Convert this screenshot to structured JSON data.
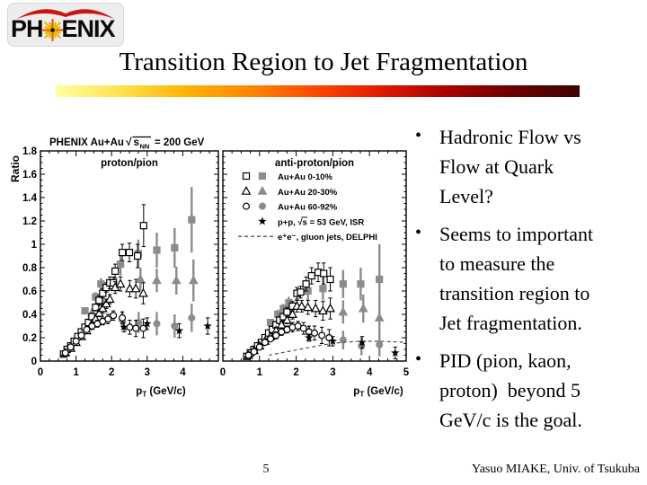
{
  "slide": {
    "logo": {
      "text_left": "PH",
      "text_right": "ENIX"
    },
    "title": "Transition Region to Jet Fragmentation",
    "bullets": {
      "marker": "•",
      "items": [
        "Hadronic Flow vs\nFlow at Quark\nLevel?",
        "Seems to important\nto measure the\ntransition region to\nJet fragmentation.",
        "PID (pion, kaon,\nproton)  beyond 5\nGeV/c is the goal."
      ]
    },
    "footer": {
      "page_number": "5",
      "credit": "Yasuo MIAKE, Univ. of Tsukuba"
    }
  },
  "colors": {
    "marker_gray": "#8c8c8c",
    "marker_black": "#000000",
    "logo_red": "#cc1414",
    "logo_gold": "#eab800",
    "gradient_stops": [
      "#ffffa0",
      "#ffe14d",
      "#ffb300",
      "#ff8400",
      "#ff4600",
      "#e01800",
      "#a80000",
      "#6b0000",
      "#3f0303"
    ]
  },
  "chart_data": {
    "type": "scatter",
    "header": {
      "pre": "PHENIX Au+Au",
      "sqrt_arg": "s",
      "sqrt_sub": "NN",
      "post": "= 200 GeV"
    },
    "ylabel": "Ratio",
    "xlabel_pre": "p",
    "xlabel_sub": "T",
    "xlabel_post": " (GeV/c)",
    "xlim": [
      0,
      5
    ],
    "ylim": [
      0,
      1.8
    ],
    "grid": false,
    "legend_position": "top-right-panel",
    "ytick_labels": [
      "0",
      "0.2",
      "0.4",
      "0.6",
      "0.8",
      "1",
      "1.2",
      "1.4",
      "1.6",
      "1.8"
    ],
    "xtick_labels_left": [
      "0",
      "1",
      "2",
      "3",
      "4"
    ],
    "xtick_labels_right": [
      "0",
      "1",
      "2",
      "3",
      "4",
      "5"
    ],
    "legend": [
      {
        "marker": "square",
        "pair": true,
        "label": "Au+Au 0-10%"
      },
      {
        "marker": "triangle",
        "pair": true,
        "label": "Au+Au 20-30%"
      },
      {
        "marker": "circle",
        "pair": true,
        "label": "Au+Au 60-92%"
      },
      {
        "marker": "star",
        "pair": false,
        "label": "p+p, √s = 53 GeV, ISR",
        "overline_s": true
      },
      {
        "marker": "dash",
        "pair": false,
        "label": "e⁺e⁻, gluon jets, DELPHI"
      }
    ],
    "panels": [
      {
        "title": "proton/pion",
        "series": [
          {
            "name": "Au+Au 0-10% filled",
            "marker": "square",
            "fill": "filled",
            "points": [
              [
                1.25,
                0.43,
                0.03
              ],
              [
                1.55,
                0.55,
                0.04
              ],
              [
                1.7,
                0.66,
                0.05
              ],
              [
                2.25,
                0.83,
                0.1
              ],
              [
                2.75,
                0.92,
                0.12
              ],
              [
                3.27,
                0.95,
                0.15
              ],
              [
                3.77,
                0.97,
                0.17
              ],
              [
                4.25,
                1.21,
                0.28
              ]
            ]
          },
          {
            "name": "Au+Au 20-30% filled",
            "marker": "triangle",
            "fill": "filled",
            "points": [
              [
                1.45,
                0.41,
                0.04
              ],
              [
                1.75,
                0.5,
                0.05
              ],
              [
                2.81,
                0.7,
                0.1
              ],
              [
                3.27,
                0.69,
                0.1
              ],
              [
                3.82,
                0.69,
                0.12
              ],
              [
                4.3,
                0.69,
                0.18
              ]
            ]
          },
          {
            "name": "Au+Au 60-92% filled",
            "marker": "circle",
            "fill": "filled",
            "points": [
              [
                2.3,
                0.35,
                0.08
              ],
              [
                2.76,
                0.33,
                0.09
              ],
              [
                3.27,
                0.32,
                0.1
              ],
              [
                3.77,
                0.3,
                0.1
              ],
              [
                4.25,
                0.37,
                0.12
              ]
            ]
          },
          {
            "name": "Au+Au 0-10% open",
            "marker": "square",
            "fill": "open",
            "points": [
              [
                0.65,
                0.06,
                0.01
              ],
              [
                0.75,
                0.1,
                0.01
              ],
              [
                0.85,
                0.13,
                0.01
              ],
              [
                0.95,
                0.17,
                0.02
              ],
              [
                1.05,
                0.21,
                0.02
              ],
              [
                1.15,
                0.25,
                0.02
              ],
              [
                1.25,
                0.29,
                0.02
              ],
              [
                1.35,
                0.33,
                0.03
              ],
              [
                1.45,
                0.38,
                0.03
              ],
              [
                1.55,
                0.46,
                0.03
              ],
              [
                1.65,
                0.52,
                0.04
              ],
              [
                1.75,
                0.58,
                0.04
              ],
              [
                1.85,
                0.63,
                0.04
              ],
              [
                1.95,
                0.67,
                0.05
              ],
              [
                2.05,
                0.67,
                0.05
              ],
              [
                2.1,
                0.77,
                0.06
              ],
              [
                2.3,
                0.93,
                0.07
              ],
              [
                2.5,
                0.93,
                0.08
              ],
              [
                2.73,
                0.9,
                0.1
              ],
              [
                2.9,
                1.16,
                0.18
              ]
            ]
          },
          {
            "name": "Au+Au 20-30% open",
            "marker": "triangle",
            "fill": "open",
            "points": [
              [
                0.7,
                0.07,
                0.01
              ],
              [
                0.85,
                0.11,
                0.01
              ],
              [
                1.0,
                0.16,
                0.02
              ],
              [
                1.15,
                0.21,
                0.02
              ],
              [
                1.3,
                0.26,
                0.02
              ],
              [
                1.45,
                0.32,
                0.03
              ],
              [
                1.55,
                0.36,
                0.03
              ],
              [
                1.65,
                0.41,
                0.03
              ],
              [
                1.75,
                0.45,
                0.04
              ],
              [
                1.85,
                0.49,
                0.04
              ],
              [
                1.95,
                0.53,
                0.04
              ],
              [
                2.1,
                0.63,
                0.05
              ],
              [
                2.25,
                0.66,
                0.06
              ],
              [
                2.51,
                0.62,
                0.07
              ],
              [
                2.68,
                0.62,
                0.08
              ],
              [
                2.89,
                0.58,
                0.09
              ]
            ]
          },
          {
            "name": "Au+Au 60-92% open",
            "marker": "circle",
            "fill": "open",
            "points": [
              [
                0.7,
                0.07,
                0.01
              ],
              [
                0.85,
                0.12,
                0.01
              ],
              [
                1.0,
                0.17,
                0.02
              ],
              [
                1.15,
                0.22,
                0.02
              ],
              [
                1.3,
                0.27,
                0.02
              ],
              [
                1.45,
                0.3,
                0.03
              ],
              [
                1.6,
                0.32,
                0.03
              ],
              [
                1.75,
                0.34,
                0.03
              ],
              [
                1.9,
                0.36,
                0.04
              ],
              [
                2.05,
                0.39,
                0.04
              ],
              [
                2.3,
                0.37,
                0.05
              ],
              [
                2.51,
                0.29,
                0.06
              ],
              [
                2.68,
                0.28,
                0.07
              ],
              [
                2.89,
                0.28,
                0.08
              ]
            ]
          },
          {
            "name": "p+p ISR",
            "marker": "star",
            "fill": "star",
            "points": [
              [
                2.35,
                0.29,
                0.04
              ],
              [
                3.0,
                0.32,
                0.05
              ],
              [
                3.9,
                0.26,
                0.06
              ],
              [
                4.7,
                0.3,
                0.07
              ]
            ]
          }
        ]
      },
      {
        "title": "anti-proton/pion",
        "series": [
          {
            "name": "Au+Au 0-10% filled",
            "marker": "square",
            "fill": "filled",
            "points": [
              [
                1.3,
                0.33,
                0.03
              ],
              [
                1.5,
                0.4,
                0.04
              ],
              [
                1.65,
                0.45,
                0.04
              ],
              [
                1.8,
                0.5,
                0.05
              ],
              [
                2.32,
                0.6,
                0.08
              ],
              [
                2.73,
                0.62,
                0.1
              ],
              [
                3.28,
                0.66,
                0.12
              ],
              [
                3.76,
                0.66,
                0.14
              ],
              [
                4.27,
                0.7,
                0.3
              ]
            ]
          },
          {
            "name": "Au+Au 20-30% filled",
            "marker": "triangle",
            "fill": "filled",
            "points": [
              [
                3.28,
                0.42,
                0.1
              ],
              [
                3.83,
                0.45,
                0.12
              ],
              [
                4.27,
                0.37,
                0.2
              ]
            ]
          },
          {
            "name": "Au+Au 60-92% filled",
            "marker": "circle",
            "fill": "filled",
            "points": [
              [
                2.35,
                0.24,
                0.06
              ],
              [
                3.28,
                0.18,
                0.08
              ],
              [
                3.78,
                0.13,
                0.08
              ],
              [
                4.27,
                0.14,
                0.1
              ]
            ]
          },
          {
            "name": "Au+Au 0-10% open",
            "marker": "square",
            "fill": "open",
            "points": [
              [
                0.65,
                0.04,
                0.01
              ],
              [
                0.75,
                0.07,
                0.01
              ],
              [
                0.85,
                0.1,
                0.01
              ],
              [
                0.95,
                0.13,
                0.02
              ],
              [
                1.05,
                0.16,
                0.02
              ],
              [
                1.15,
                0.2,
                0.02
              ],
              [
                1.25,
                0.24,
                0.02
              ],
              [
                1.35,
                0.27,
                0.02
              ],
              [
                1.45,
                0.31,
                0.03
              ],
              [
                1.55,
                0.35,
                0.03
              ],
              [
                1.65,
                0.38,
                0.03
              ],
              [
                1.75,
                0.42,
                0.04
              ],
              [
                1.9,
                0.47,
                0.04
              ],
              [
                2.02,
                0.58,
                0.05
              ],
              [
                2.12,
                0.59,
                0.05
              ],
              [
                2.27,
                0.66,
                0.06
              ],
              [
                2.42,
                0.73,
                0.07
              ],
              [
                2.6,
                0.76,
                0.08
              ],
              [
                2.75,
                0.75,
                0.09
              ],
              [
                2.93,
                0.7,
                0.1
              ]
            ]
          },
          {
            "name": "Au+Au 20-30% open",
            "marker": "triangle",
            "fill": "open",
            "points": [
              [
                0.7,
                0.05,
                0.01
              ],
              [
                0.85,
                0.09,
                0.01
              ],
              [
                1.0,
                0.13,
                0.02
              ],
              [
                1.15,
                0.17,
                0.02
              ],
              [
                1.3,
                0.21,
                0.02
              ],
              [
                1.45,
                0.26,
                0.03
              ],
              [
                1.6,
                0.31,
                0.03
              ],
              [
                1.75,
                0.35,
                0.03
              ],
              [
                1.9,
                0.4,
                0.04
              ],
              [
                2.02,
                0.47,
                0.05
              ],
              [
                2.15,
                0.47,
                0.05
              ],
              [
                2.32,
                0.46,
                0.06
              ],
              [
                2.53,
                0.45,
                0.07
              ],
              [
                2.73,
                0.43,
                0.08
              ],
              [
                2.93,
                0.45,
                0.09
              ]
            ]
          },
          {
            "name": "Au+Au 60-92% open",
            "marker": "circle",
            "fill": "open",
            "points": [
              [
                0.7,
                0.05,
                0.01
              ],
              [
                0.85,
                0.08,
                0.01
              ],
              [
                1.0,
                0.12,
                0.02
              ],
              [
                1.15,
                0.16,
                0.02
              ],
              [
                1.3,
                0.19,
                0.02
              ],
              [
                1.45,
                0.22,
                0.03
              ],
              [
                1.6,
                0.25,
                0.03
              ],
              [
                1.75,
                0.27,
                0.03
              ],
              [
                1.9,
                0.29,
                0.04
              ],
              [
                2.05,
                0.3,
                0.04
              ],
              [
                2.2,
                0.28,
                0.05
              ],
              [
                2.35,
                0.25,
                0.05
              ],
              [
                2.5,
                0.24,
                0.06
              ],
              [
                2.7,
                0.22,
                0.07
              ],
              [
                2.9,
                0.2,
                0.07
              ]
            ]
          },
          {
            "name": "p+p ISR",
            "marker": "star",
            "fill": "star",
            "points": [
              [
                2.35,
                0.2,
                0.03
              ],
              [
                3.0,
                0.17,
                0.04
              ],
              [
                3.8,
                0.16,
                0.05
              ],
              [
                4.7,
                0.07,
                0.05
              ]
            ]
          }
        ],
        "dashed_line": [
          [
            1.25,
            0.05
          ],
          [
            1.75,
            0.08
          ],
          [
            2.25,
            0.11
          ],
          [
            2.75,
            0.14
          ],
          [
            3.25,
            0.16
          ],
          [
            3.75,
            0.17
          ],
          [
            4.25,
            0.17
          ],
          [
            5.0,
            0.16
          ]
        ]
      }
    ]
  }
}
